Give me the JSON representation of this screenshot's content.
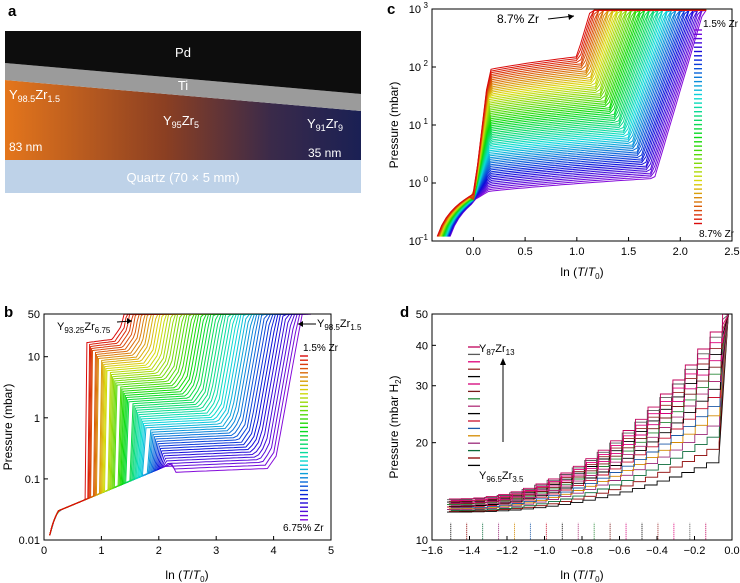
{
  "panels": {
    "a": {
      "letter": "a",
      "layers": {
        "pd": "Pd",
        "ti": "Ti",
        "y_left": "Y",
        "y_left_sub1": "98.5",
        "y_left_zr": "Zr",
        "y_left_sub2": "1.5",
        "y_mid": "Y",
        "y_mid_sub1": "95",
        "y_mid_zr": "Zr",
        "y_mid_sub2": "5",
        "y_right": "Y",
        "y_right_sub1": "91",
        "y_right_zr": "Zr",
        "y_right_sub2": "9",
        "thick_left": "83 nm",
        "thick_right": "35 nm",
        "substrate": "Quartz (70 × 5 mm)"
      },
      "colors": {
        "pd": "#0d0d0d",
        "ti": "#9b9b9b",
        "substrate": "#bed2e8",
        "grad_left": "#e4761c",
        "grad_mid": "#6e3a3a",
        "grad_right": "#1c2150"
      }
    },
    "b": {
      "letter": "b",
      "ylabel": "Pressure (mbar)",
      "xlabel_pre": "ln (",
      "xlabel_T": "T",
      "xlabel_slash": "/",
      "xlabel_T0": "T",
      "xlabel_0": "0",
      "xlabel_post": ")",
      "ann_left_y": "Y",
      "ann_left_sub1": "93.25",
      "ann_left_zr": "Zr",
      "ann_left_sub2": "6.75",
      "ann_right_y": "Y",
      "ann_right_sub1": "98.5",
      "ann_right_zr": "Zr",
      "ann_right_sub2": "1.5",
      "legend_top": "1.5% Zr",
      "legend_bottom": "6.75% Zr"
    },
    "c": {
      "letter": "c",
      "ylabel": "Pressure (mbar)",
      "xlabel_pre": "ln (",
      "xlabel_T": "T",
      "xlabel_slash": "/",
      "xlabel_T0": "T",
      "xlabel_0": "0",
      "xlabel_post": ")",
      "annotation": "8.7% Zr",
      "legend_top": "1.5% Zr",
      "legend_bottom": "8.7% Zr"
    },
    "d": {
      "letter": "d",
      "ylabel": "Pressure (mbar H",
      "ylabel_sub": "2",
      "ylabel_post": ")",
      "xlabel_pre": "ln (",
      "xlabel_T": "T",
      "xlabel_slash": "/",
      "xlabel_T0": "T",
      "xlabel_0": "0",
      "xlabel_post": ")",
      "ann_top_y": "Y",
      "ann_top_sub1": "87",
      "ann_top_zr": "Zr",
      "ann_top_sub2": "13",
      "ann_bot_y": "Y",
      "ann_bot_sub1": "96.5",
      "ann_bot_zr": "Zr",
      "ann_bot_sub2": "3.5"
    }
  },
  "chart_data": [
    {
      "panel": "b",
      "type": "line",
      "title": "",
      "xlabel": "ln (T/T0)",
      "ylabel": "Pressure (mbar)",
      "xlim": [
        0,
        5
      ],
      "ylim": [
        0.01,
        50
      ],
      "yscale": "log",
      "x_ticks": [
        0,
        1,
        2,
        3,
        4,
        5
      ],
      "y_ticks": [
        0.01,
        0.1,
        1,
        10,
        50
      ],
      "y_tick_labels": [
        "0.01",
        "0.1",
        "1",
        "10",
        "50"
      ],
      "curve_count": 60,
      "series_range": {
        "first": "1.5% Zr",
        "last": "6.75% Zr"
      },
      "plateau_pressure_range": [
        0.15,
        20
      ],
      "transition_x_range": [
        1.35,
        4.05
      ],
      "grid": false
    },
    {
      "panel": "c",
      "type": "line",
      "title": "",
      "xlabel": "ln (T/T0)",
      "ylabel": "Pressure (mbar)",
      "xlim": [
        -0.4,
        2.5
      ],
      "ylim": [
        0.1,
        1000
      ],
      "yscale": "log",
      "x_ticks": [
        0.0,
        0.5,
        1.0,
        1.5,
        2.0,
        2.5
      ],
      "x_tick_labels": [
        "0.0",
        "0.5",
        "1.0",
        "1.5",
        "2.0",
        "2.5"
      ],
      "y_ticks": [
        0.1,
        1,
        10,
        100,
        1000
      ],
      "y_tick_labels": [
        "10",
        "10",
        "10",
        "10",
        "10"
      ],
      "y_tick_exponents": [
        "−1",
        "0",
        "1",
        "2",
        "3"
      ],
      "curve_count": 70,
      "series_range": {
        "first": "1.5% Zr",
        "last": "8.7% Zr"
      },
      "plateau_pressure_range": [
        1.2,
        150
      ],
      "grid": false
    },
    {
      "panel": "d",
      "type": "line",
      "title": "",
      "xlabel": "ln (T/T0)",
      "ylabel": "Pressure (mbar H2)",
      "xlim": [
        -1.6,
        0.0
      ],
      "ylim": [
        10,
        50
      ],
      "yscale": "log",
      "x_ticks": [
        -1.6,
        -1.4,
        -1.2,
        -1.0,
        -0.8,
        -0.6,
        -0.4,
        -0.2,
        0.0
      ],
      "x_tick_labels": [
        "−1.6",
        "−1.4",
        "−1.2",
        "−1.0",
        "−0.8",
        "−0.6",
        "−0.4",
        "−0.2",
        "0.0"
      ],
      "y_ticks": [
        10,
        20,
        30,
        40,
        50
      ],
      "curve_count": 17,
      "series_range": {
        "first": "Y96.5Zr3.5",
        "last": "Y87Zr13"
      },
      "grid": false
    }
  ]
}
